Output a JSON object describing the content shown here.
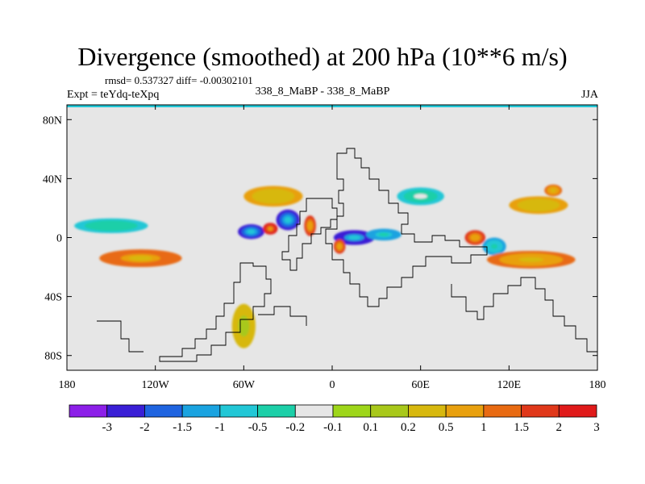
{
  "header": {
    "title": "Divergence (smoothed) at 200 hPa (10**6 m/s)",
    "stats": "rmsd= 0.537327 diff= -0.00302101",
    "expt": "Expt = teYdq-teXpq",
    "center": "338_8_MaBP - 338_8_MaBP",
    "season": "JJA"
  },
  "colors": {
    "land_fill": "#e6e6e6",
    "contour_line": "#000000",
    "palette": [
      "#8c1fe8",
      "#3a1fd6",
      "#1f64e0",
      "#1aa3e0",
      "#22c7d6",
      "#1ccfa8",
      "#e6e6e6",
      "#9ed61a",
      "#a8c81a",
      "#d7b80e",
      "#e8a00e",
      "#e86a12",
      "#e0381a",
      "#e01a1a"
    ]
  },
  "chart_data": {
    "type": "heatmap",
    "title": "Divergence (smoothed) at 200 hPa (10**6 m/s)",
    "variable": "Divergence difference",
    "units": "10**6 m/s",
    "x_ticks": [
      "180",
      "120W",
      "60W",
      "0",
      "60E",
      "120E",
      "180"
    ],
    "x_tick_values": [
      -180,
      -120,
      -60,
      0,
      60,
      120,
      180
    ],
    "y_ticks": [
      "80N",
      "40N",
      "0",
      "40S",
      "80S"
    ],
    "y_tick_values": [
      80,
      40,
      0,
      -40,
      -80
    ],
    "xlim": [
      -180,
      180
    ],
    "ylim": [
      -90,
      90
    ],
    "colorbar_levels": [
      "-3",
      "-2",
      "-1.5",
      "-1",
      "-0.5",
      "-0.2",
      "-0.1",
      "0.1",
      "0.2",
      "0.5",
      "1",
      "1.5",
      "2",
      "3"
    ],
    "features": [
      {
        "lon": -55,
        "lat": 4,
        "value": -2.4,
        "rlon": 9,
        "rlat": 5
      },
      {
        "lon": -30,
        "lat": 12,
        "value": -2.2,
        "rlon": 8,
        "rlat": 7
      },
      {
        "lon": 15,
        "lat": 0,
        "value": -2.6,
        "rlon": 14,
        "rlat": 5
      },
      {
        "lon": 35,
        "lat": 2,
        "value": -1.3,
        "rlon": 12,
        "rlat": 4
      },
      {
        "lon": 110,
        "lat": -6,
        "value": -1.0,
        "rlon": 8,
        "rlat": 6
      },
      {
        "lon": -42,
        "lat": 6,
        "value": 2.4,
        "rlon": 5,
        "rlat": 4
      },
      {
        "lon": -15,
        "lat": 8,
        "value": 1.6,
        "rlon": 4,
        "rlat": 7
      },
      {
        "lon": 5,
        "lat": -6,
        "value": 1.7,
        "rlon": 4,
        "rlat": 5
      },
      {
        "lon": 97,
        "lat": 0,
        "value": 1.6,
        "rlon": 7,
        "rlat": 5
      },
      {
        "lon": -130,
        "lat": -14,
        "value": 1.4,
        "rlon": 28,
        "rlat": 6
      },
      {
        "lon": 135,
        "lat": -15,
        "value": 1.2,
        "rlon": 30,
        "rlat": 6
      },
      {
        "lon": -40,
        "lat": 28,
        "value": 0.6,
        "rlon": 20,
        "rlat": 7
      },
      {
        "lon": 60,
        "lat": 28,
        "value": -0.5,
        "rlon": 16,
        "rlat": 6
      },
      {
        "lon": -150,
        "lat": 8,
        "value": -0.6,
        "rlon": 25,
        "rlat": 5
      },
      {
        "lon": 140,
        "lat": 22,
        "value": 0.6,
        "rlon": 20,
        "rlat": 6
      },
      {
        "lon": -60,
        "lat": -60,
        "value": 0.3,
        "rlon": 8,
        "rlat": 15
      },
      {
        "lon": 150,
        "lat": 32,
        "value": 1.1,
        "rlon": 6,
        "rlat": 4
      }
    ]
  }
}
